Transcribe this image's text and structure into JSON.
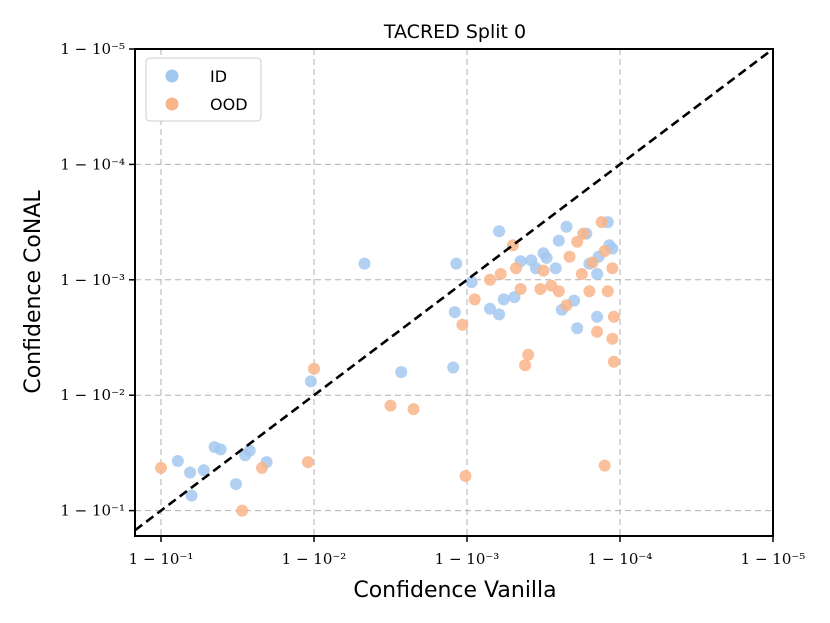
{
  "chart_data": {
    "type": "scatter",
    "title": "TACRED Split 0",
    "xlabel": "Confidence Vanilla",
    "ylabel": "Confidence CoNAL",
    "scale": "log-complement",
    "x_tick_labels": [
      "1 − 10⁻¹",
      "1 − 10⁻²",
      "1 − 10⁻³",
      "1 − 10⁻⁴",
      "1 − 10⁻⁵"
    ],
    "y_tick_labels": [
      "1 − 10⁻¹",
      "1 − 10⁻²",
      "1 − 10⁻³",
      "1 − 10⁻⁴",
      "1 − 10⁻⁵"
    ],
    "tick_exponents": [
      1,
      2,
      3,
      4,
      5
    ],
    "xlim_exponent": [
      0.83,
      5
    ],
    "ylim_exponent": [
      0.78,
      5
    ],
    "grid": true,
    "legend_position": "top-left",
    "diagonal_reference": true,
    "colors": {
      "ID": "#a3c8f0",
      "OOD": "#f9b589"
    },
    "series": [
      {
        "name": "ID",
        "points": [
          [
            1.11,
            1.43
          ],
          [
            1.19,
            1.33
          ],
          [
            1.2,
            1.13
          ],
          [
            1.28,
            1.35
          ],
          [
            1.35,
            1.55
          ],
          [
            1.39,
            1.53
          ],
          [
            1.49,
            1.23
          ],
          [
            1.55,
            1.48
          ],
          [
            1.58,
            1.52
          ],
          [
            1.69,
            1.42
          ],
          [
            1.98,
            2.12
          ],
          [
            2.33,
            3.14
          ],
          [
            2.57,
            2.2
          ],
          [
            2.91,
            2.24
          ],
          [
            2.92,
            2.72
          ],
          [
            2.93,
            3.14
          ],
          [
            3.03,
            2.98
          ],
          [
            3.15,
            2.75
          ],
          [
            3.21,
            2.7
          ],
          [
            3.21,
            3.42
          ],
          [
            3.24,
            2.83
          ],
          [
            3.31,
            2.85
          ],
          [
            3.35,
            3.16
          ],
          [
            3.42,
            3.17
          ],
          [
            3.45,
            3.1
          ],
          [
            3.5,
            3.23
          ],
          [
            3.52,
            3.19
          ],
          [
            3.58,
            3.1
          ],
          [
            3.6,
            3.34
          ],
          [
            3.62,
            2.74
          ],
          [
            3.65,
            3.46
          ],
          [
            3.7,
            2.82
          ],
          [
            3.72,
            2.58
          ],
          [
            3.78,
            3.4
          ],
          [
            3.8,
            3.14
          ],
          [
            3.85,
            3.05
          ],
          [
            3.86,
            3.2
          ],
          [
            3.85,
            2.68
          ],
          [
            3.92,
            3.5
          ],
          [
            3.93,
            3.3
          ],
          [
            3.95,
            3.27
          ]
        ]
      },
      {
        "name": "OOD",
        "points": [
          [
            1.0,
            1.37
          ],
          [
            1.53,
            1.0
          ],
          [
            1.66,
            1.37
          ],
          [
            1.96,
            1.42
          ],
          [
            2.0,
            2.23
          ],
          [
            2.5,
            1.91
          ],
          [
            2.65,
            1.88
          ],
          [
            2.97,
            2.61
          ],
          [
            2.99,
            1.3
          ],
          [
            3.05,
            2.83
          ],
          [
            3.15,
            3.0
          ],
          [
            3.22,
            3.05
          ],
          [
            3.3,
            3.3
          ],
          [
            3.32,
            3.1
          ],
          [
            3.35,
            2.92
          ],
          [
            3.38,
            2.26
          ],
          [
            3.4,
            2.35
          ],
          [
            3.48,
            2.92
          ],
          [
            3.5,
            3.08
          ],
          [
            3.55,
            2.95
          ],
          [
            3.6,
            2.9
          ],
          [
            3.65,
            2.78
          ],
          [
            3.67,
            3.2
          ],
          [
            3.72,
            3.33
          ],
          [
            3.75,
            3.05
          ],
          [
            3.76,
            3.4
          ],
          [
            3.8,
            2.9
          ],
          [
            3.82,
            3.15
          ],
          [
            3.85,
            2.55
          ],
          [
            3.88,
            3.5
          ],
          [
            3.9,
            3.25
          ],
          [
            3.92,
            2.9
          ],
          [
            3.95,
            3.1
          ],
          [
            3.9,
            1.39
          ],
          [
            3.95,
            2.49
          ],
          [
            3.96,
            2.29
          ],
          [
            3.96,
            2.68
          ]
        ]
      }
    ]
  }
}
